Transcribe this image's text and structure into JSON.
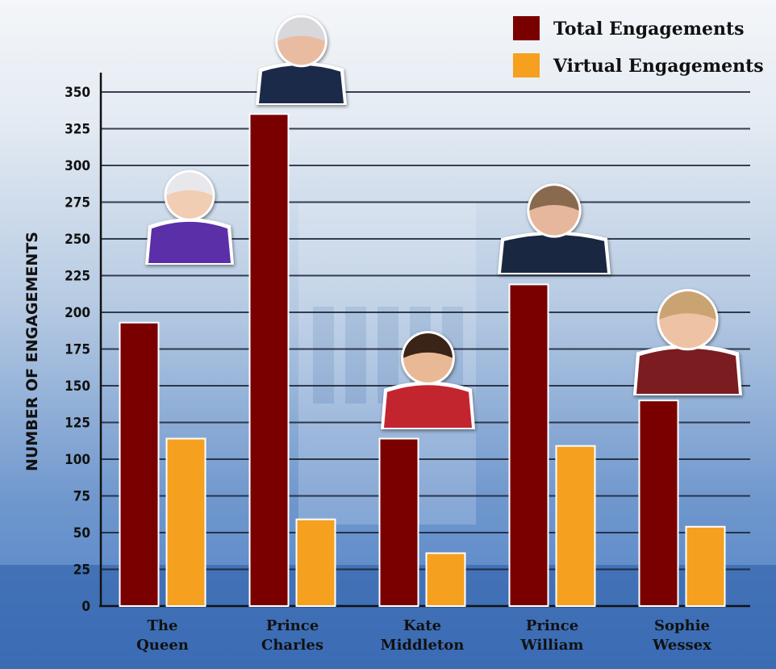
{
  "chart_data": {
    "type": "bar",
    "ylabel": "NUMBER OF ENGAGEMENTS",
    "ylim": [
      0,
      350
    ],
    "yticks": [
      0,
      25,
      50,
      75,
      100,
      125,
      150,
      175,
      200,
      225,
      250,
      275,
      300,
      325,
      350
    ],
    "categories": [
      [
        "The",
        "Queen"
      ],
      [
        "Prince",
        "Charles"
      ],
      [
        "Kate",
        "Middleton"
      ],
      [
        "Prince",
        "William"
      ],
      [
        "Sophie",
        "Wessex"
      ]
    ],
    "series": [
      {
        "name": "Total Engagements",
        "color": "#7a0000",
        "values": [
          193,
          335,
          114,
          219,
          140
        ]
      },
      {
        "name": "Virtual Engagements",
        "color": "#f5a01e",
        "values": [
          114,
          59,
          36,
          109,
          54
        ]
      }
    ],
    "legend_position": "top-right",
    "grid": true
  },
  "colors": {
    "gridline": "#1a2233",
    "axis": "#111111",
    "bar_outline": "#ffffff"
  }
}
